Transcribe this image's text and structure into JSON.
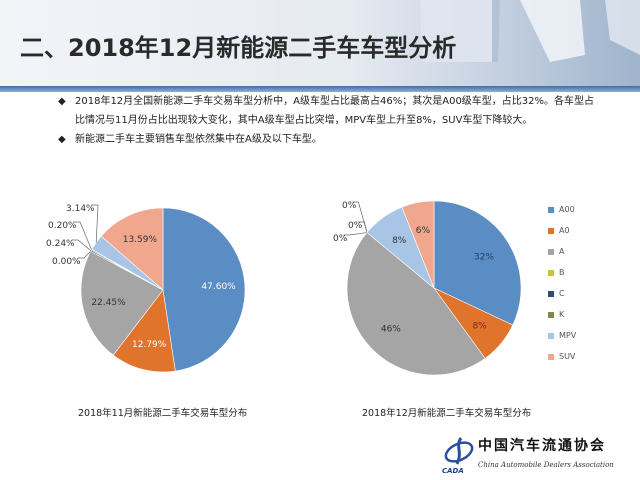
{
  "header": {
    "title": "二、2018年12月新能源二手车车型分析"
  },
  "bullets": [
    "2018年12月全国新能源二手车交易车型分析中，A级车型占比最高占46%；其次是A00级车型，占比32%。各车型占比情况与11月份占比出现较大变化，其中A级车型占比突增，MPV车型上升至8%，SUV车型下降较大。",
    "新能源二手车主要销售车型依然集中在A级及以下车型。"
  ],
  "bullet_icon": "diamond-icon",
  "colors": {
    "A00": "#5a8dc3",
    "A0": "#e0742c",
    "A": "#a5a5a5",
    "B": "#c6c43a",
    "C": "#2e4c6c",
    "K": "#7b8c4c",
    "MPV": "#a8c5e6",
    "SUV": "#f1a78d"
  },
  "chart_data": [
    {
      "type": "pie",
      "title": "2018年11月新能源二手车交易车型分布",
      "categories": [
        "A00",
        "A0",
        "A",
        "B",
        "C",
        "K",
        "MPV",
        "SUV"
      ],
      "values": [
        47.6,
        12.79,
        22.45,
        0.0,
        0.24,
        0.2,
        3.14,
        13.59
      ],
      "labels": [
        "47.60%",
        "12.79%",
        "22.45%",
        "0.00%",
        "0.24%",
        "0.20%",
        "3.14%",
        "13.59%"
      ],
      "start": "12 o'clock",
      "direction": "clockwise"
    },
    {
      "type": "pie",
      "title": "2018年12月新能源二手车交易车型分布",
      "categories": [
        "A00",
        "A0",
        "A",
        "B",
        "C",
        "K",
        "MPV",
        "SUV"
      ],
      "values": [
        32,
        8,
        46,
        0,
        0,
        0,
        8,
        6
      ],
      "labels": [
        "32%",
        "8%",
        "46%",
        "0%",
        "0%",
        "0%",
        "8%",
        "6%"
      ],
      "legend": {
        "placement": "right",
        "entries": [
          "A00",
          "A0",
          "A",
          "B",
          "C",
          "K",
          "MPV",
          "SUV"
        ]
      },
      "start": "12 o'clock",
      "direction": "clockwise"
    }
  ],
  "logo": {
    "name_cn": "中国汽车流通协会",
    "name_en": "China Automobile Dealers Association",
    "abbr": "CADA"
  }
}
